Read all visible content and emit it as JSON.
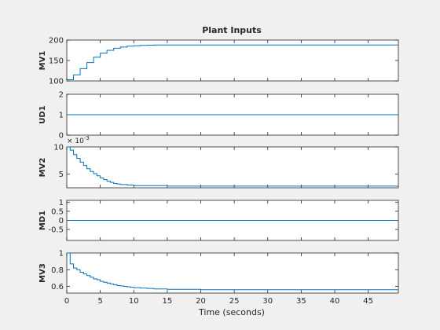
{
  "chart_data": {
    "type": "line",
    "title": "Plant Inputs",
    "xlabel": "Time (seconds)",
    "xlim": [
      0,
      49.5
    ],
    "x_ticks": [
      0,
      5,
      10,
      15,
      20,
      25,
      30,
      35,
      40,
      45
    ],
    "colors": {
      "line": "#0072bd",
      "axes": "#262626",
      "background": "#f0f0f0",
      "plot_bg": "#ffffff"
    },
    "subplots": [
      {
        "ylabel": "MV1",
        "ylim": [
          100,
          200
        ],
        "y_ticks": [
          100,
          150,
          200
        ],
        "step": true,
        "series": [
          {
            "x": [
              0,
              1,
              2,
              3,
              4,
              5,
              6,
              7,
              8,
              9,
              10,
              11,
              12,
              13,
              14,
              15,
              49.5
            ],
            "y": [
              103,
              115,
              130,
              145,
              158,
              168,
              175,
              180,
              183,
              185,
              186,
              187,
              187.5,
              188,
              188,
              188,
              188
            ]
          }
        ]
      },
      {
        "ylabel": "UD1",
        "ylim": [
          0,
          2
        ],
        "y_ticks": [
          0,
          1,
          2
        ],
        "step": true,
        "series": [
          {
            "x": [
              0,
              49.5
            ],
            "y": [
              1,
              1
            ]
          }
        ]
      },
      {
        "ylabel": "MV2",
        "ylim": [
          0.0025,
          0.01
        ],
        "y_ticks": [
          0.005,
          0.01
        ],
        "y_tick_labels": [
          "5",
          "10"
        ],
        "exponent_label": "× 10",
        "exponent_power": "-3",
        "step": true,
        "series": [
          {
            "x": [
              0,
              0.5,
              1,
              1.5,
              2,
              2.5,
              3,
              3.5,
              4,
              4.5,
              5,
              5.5,
              6,
              6.5,
              7,
              7.5,
              8,
              9,
              10,
              12,
              15,
              49.5
            ],
            "y": [
              0.01,
              0.0094,
              0.0086,
              0.0079,
              0.0072,
              0.0066,
              0.006,
              0.0055,
              0.0051,
              0.0047,
              0.0043,
              0.004,
              0.0037,
              0.0035,
              0.0033,
              0.0032,
              0.0031,
              0.003,
              0.0029,
              0.0029,
              0.0028,
              0.0028
            ]
          }
        ]
      },
      {
        "ylabel": "MD1",
        "ylim": [
          -1.1,
          1.1
        ],
        "y_ticks": [
          -0.5,
          0,
          0.5,
          1
        ],
        "y_tick_labels": [
          "-0.5",
          "0",
          "0.5",
          "1"
        ],
        "step": true,
        "series": [
          {
            "x": [
              0,
              49.5
            ],
            "y": [
              0,
              0
            ]
          }
        ]
      },
      {
        "ylabel": "MV3",
        "ylim": [
          0.52,
          1.0
        ],
        "y_ticks": [
          0.6,
          0.8,
          1
        ],
        "y_tick_labels": [
          "0.6",
          "0.8",
          "1"
        ],
        "step": true,
        "series": [
          {
            "x": [
              0,
              0.5,
              1,
              1.5,
              2,
              2.5,
              3,
              3.5,
              4,
              4.5,
              5,
              5.5,
              6,
              6.5,
              7,
              7.5,
              8,
              8.5,
              9,
              9.5,
              10,
              11,
              12,
              13,
              15,
              20,
              49.5
            ],
            "y": [
              1.0,
              0.87,
              0.82,
              0.8,
              0.77,
              0.75,
              0.73,
              0.71,
              0.69,
              0.68,
              0.66,
              0.65,
              0.64,
              0.63,
              0.62,
              0.61,
              0.605,
              0.6,
              0.595,
              0.59,
              0.585,
              0.58,
              0.575,
              0.57,
              0.565,
              0.56,
              0.56
            ]
          }
        ]
      }
    ]
  }
}
